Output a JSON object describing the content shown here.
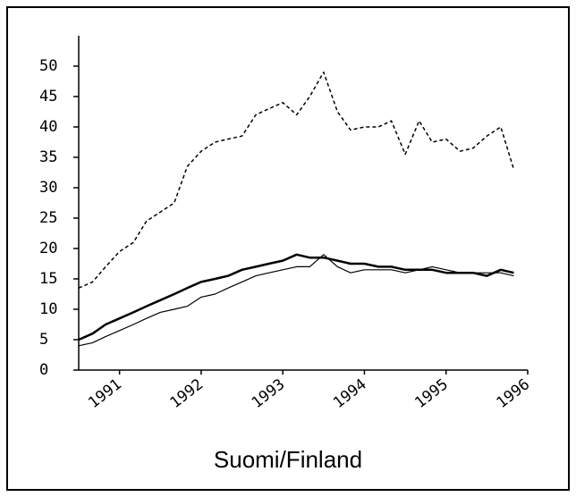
{
  "chart_data": {
    "type": "line",
    "title": "Suomi/Finland",
    "x": [
      1990.5,
      1990.67,
      1990.83,
      1991,
      1991.17,
      1991.33,
      1991.5,
      1991.67,
      1991.83,
      1992,
      1992.17,
      1992.33,
      1992.5,
      1992.67,
      1992.83,
      1993,
      1993.17,
      1993.33,
      1993.5,
      1993.67,
      1993.83,
      1994,
      1994.17,
      1994.33,
      1994.5,
      1994.67,
      1994.83,
      1995,
      1995.17,
      1995.33,
      1995.5,
      1995.67,
      1995.83
    ],
    "series": [
      {
        "color": "#000000",
        "style": "dashed",
        "width": 1.5,
        "values": [
          13.5,
          14.5,
          17,
          19.5,
          21,
          24.5,
          26,
          27.5,
          33.5,
          36,
          37.5,
          38,
          38.5,
          42,
          43,
          44,
          42,
          45,
          49,
          42.5,
          39.5,
          40,
          40,
          41,
          35.5,
          41,
          37.5,
          38,
          36,
          36.5,
          38.5,
          40,
          33
        ]
      },
      {
        "color": "#000000",
        "style": "solid",
        "width": 2.5,
        "values": [
          5,
          6,
          7.5,
          8.5,
          9.5,
          10.5,
          11.5,
          12.5,
          13.5,
          14.5,
          15,
          15.5,
          16.5,
          17,
          17.5,
          18,
          19,
          18.5,
          18.5,
          18,
          17.5,
          17.5,
          17,
          17,
          16.5,
          16.5,
          16.5,
          16,
          16,
          16,
          15.5,
          16.5,
          16
        ]
      },
      {
        "color": "#000000",
        "style": "solid",
        "width": 1.2,
        "values": [
          4,
          4.5,
          5.5,
          6.5,
          7.5,
          8.5,
          9.5,
          10,
          10.5,
          12,
          12.5,
          13.5,
          14.5,
          15.5,
          16,
          16.5,
          17,
          17,
          19,
          17,
          16,
          16.5,
          16.5,
          16.5,
          16,
          16.5,
          17,
          16.5,
          16,
          16,
          16,
          16,
          15.5
        ]
      }
    ],
    "xlim": [
      1990.5,
      1996
    ],
    "xticks": [
      1991,
      1992,
      1993,
      1994,
      1995,
      1996
    ],
    "ylim": [
      0,
      55
    ],
    "yticks": [
      0,
      5,
      10,
      15,
      20,
      25,
      30,
      35,
      40,
      45,
      50
    ]
  }
}
